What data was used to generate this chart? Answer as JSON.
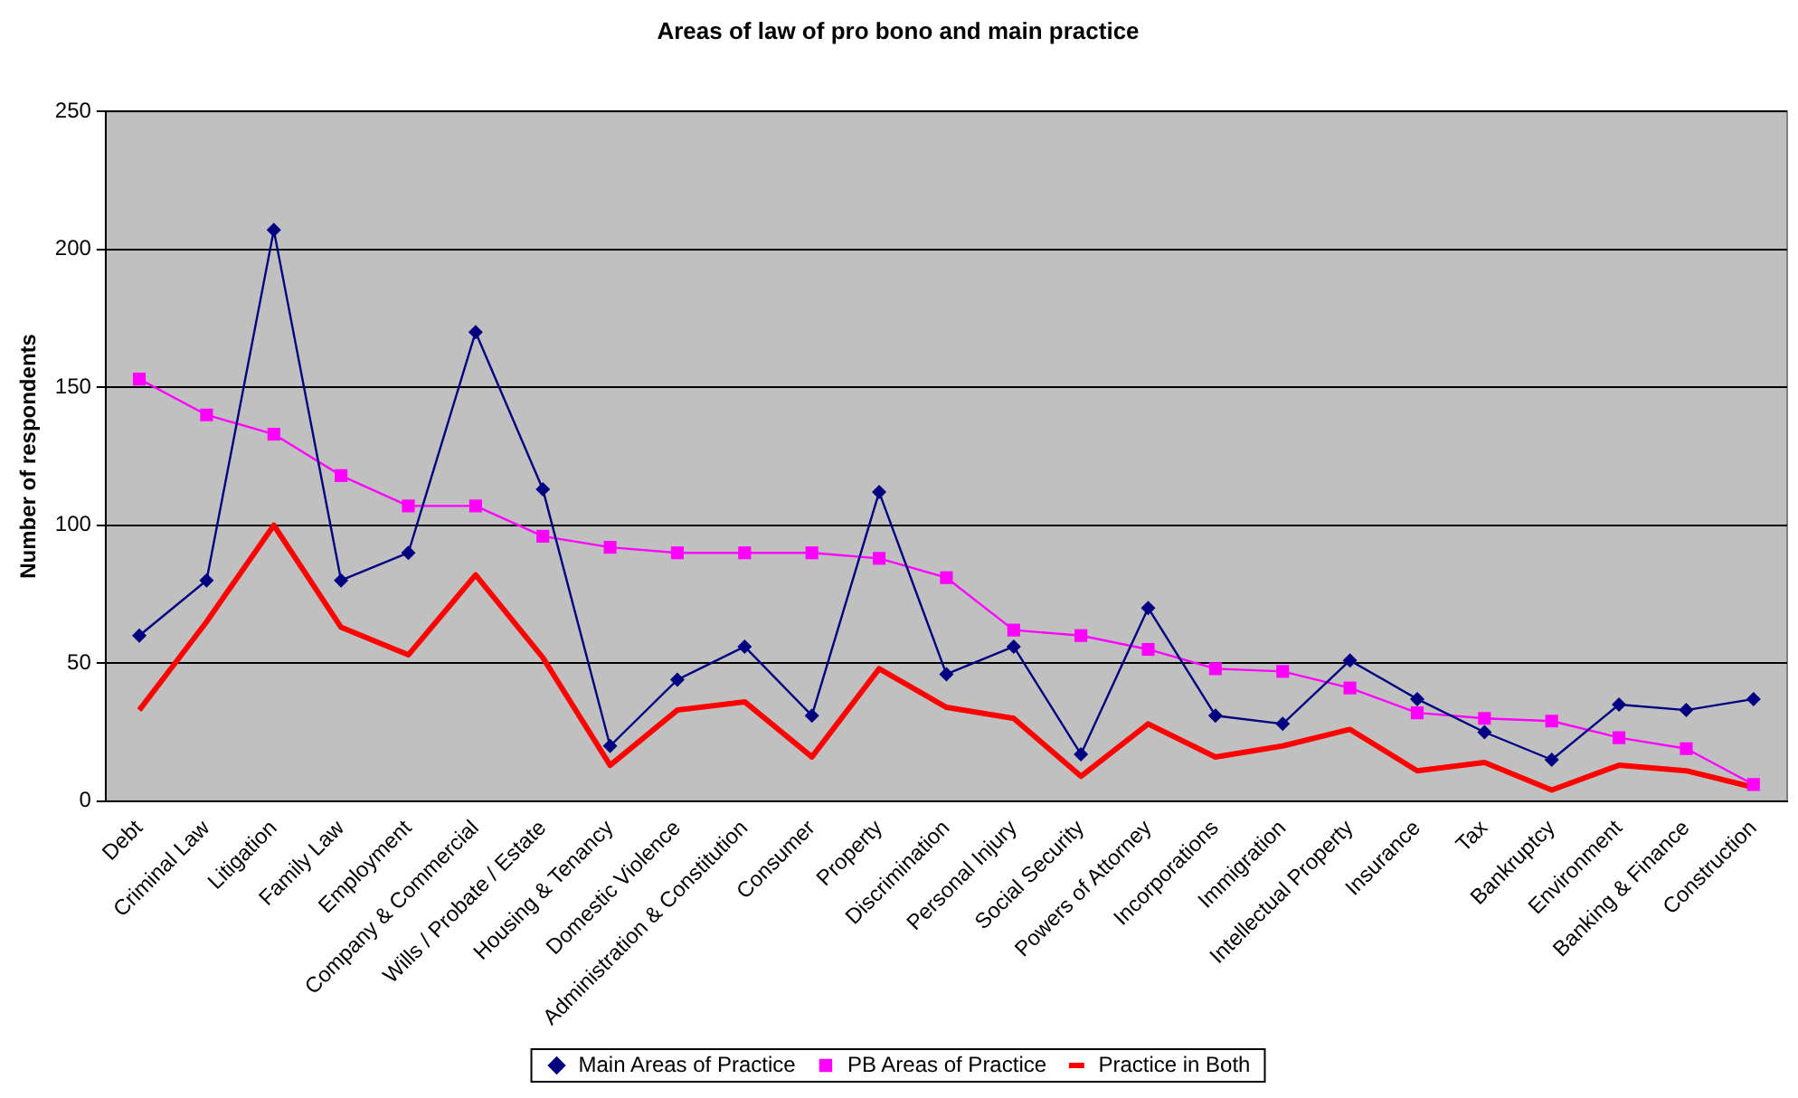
{
  "chart_data": {
    "type": "line",
    "title": "Areas of law of pro bono and main practice",
    "ylabel": "Number of respondents",
    "categories": [
      "Debt",
      "Criminal Law",
      "Litigation",
      "Family Law",
      "Employment",
      "Company & Commercial",
      "Wills / Probate / Estate",
      "Housing & Tenancy",
      "Domestic Violence",
      "Administration & Constitution",
      "Consumer",
      "Property",
      "Discrimination",
      "Personal Injury",
      "Social Security",
      "Powers of Attorney",
      "Incorporations",
      "Immigration",
      "Intellectual Property",
      "Insurance",
      "Tax",
      "Bankruptcy",
      "Environment",
      "Banking & Finance",
      "Construction"
    ],
    "series": [
      {
        "name": "Main Areas of Practice",
        "color": "#000080",
        "marker": "diamond",
        "values": [
          60,
          80,
          207,
          80,
          90,
          170,
          113,
          20,
          44,
          56,
          31,
          112,
          46,
          56,
          17,
          70,
          31,
          28,
          51,
          37,
          25,
          15,
          35,
          33,
          37
        ]
      },
      {
        "name": "PB Areas of Practice",
        "color": "#ff00ff",
        "marker": "square",
        "values": [
          153,
          140,
          133,
          118,
          107,
          107,
          96,
          92,
          90,
          90,
          90,
          88,
          81,
          62,
          60,
          55,
          48,
          47,
          41,
          32,
          30,
          29,
          23,
          19,
          6
        ]
      },
      {
        "name": "Practice in Both",
        "color": "#ff0000",
        "marker": "none",
        "values": [
          33,
          65,
          100,
          63,
          53,
          82,
          52,
          13,
          33,
          36,
          16,
          48,
          34,
          30,
          9,
          28,
          16,
          20,
          26,
          11,
          14,
          4,
          13,
          11,
          5
        ]
      }
    ],
    "ylim": [
      0,
      250
    ],
    "yticks": [
      0,
      50,
      100,
      150,
      200,
      250
    ],
    "grid": "y",
    "legend": "bottom"
  }
}
